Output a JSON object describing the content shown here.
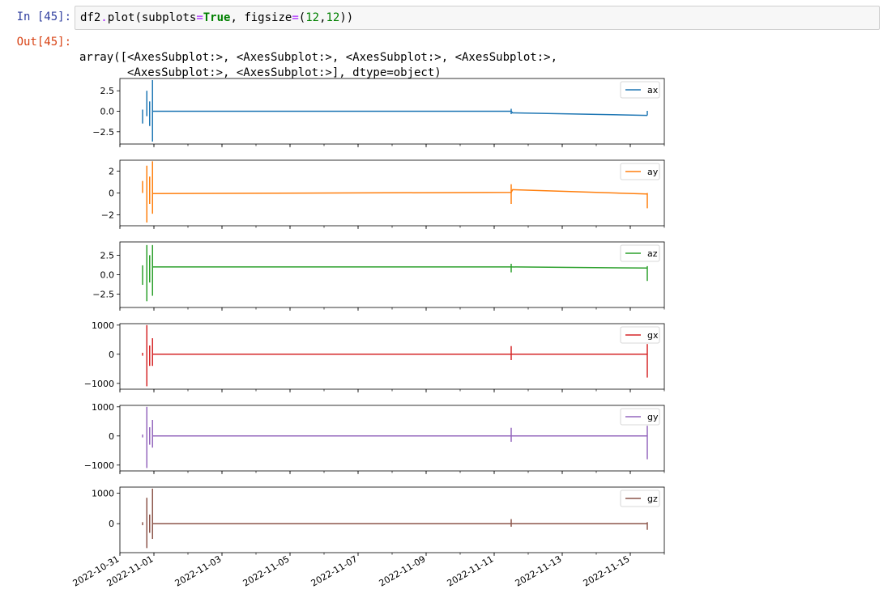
{
  "notebook": {
    "input_prompt": "In [45]:",
    "output_prompt": "Out[45]:",
    "code_tokens": [
      {
        "t": "df2",
        "c": "p"
      },
      {
        "t": ".",
        "c": "op"
      },
      {
        "t": "plot(subplots",
        "c": "p"
      },
      {
        "t": "=",
        "c": "op"
      },
      {
        "t": "True",
        "c": "kw"
      },
      {
        "t": ", figsize",
        "c": "p"
      },
      {
        "t": "=",
        "c": "op"
      },
      {
        "t": "(",
        "c": "p"
      },
      {
        "t": "12",
        "c": "num"
      },
      {
        "t": ",",
        "c": "p"
      },
      {
        "t": "12",
        "c": "num"
      },
      {
        "t": "))",
        "c": "p"
      }
    ],
    "output_lines": [
      "array([<AxesSubplot:>, <AxesSubplot:>, <AxesSubplot:>, <AxesSubplot:>,",
      "       <AxesSubplot:>, <AxesSubplot:>], dtype=object)"
    ]
  },
  "chart_data": {
    "type": "line",
    "xaxis": {
      "type": "date",
      "range": [
        "2022-10-31T00:00",
        "2022-11-16T00:00"
      ],
      "tick_labels": [
        "2022-10-31",
        "2022-11-01",
        "2022-11-03",
        "2022-11-05",
        "2022-11-07",
        "2022-11-09",
        "2022-11-11",
        "2022-11-13",
        "2022-11-15"
      ],
      "tick_dates": [
        "2022-10-31T00:00",
        "2022-11-01T00:00",
        "2022-11-03T00:00",
        "2022-11-05T00:00",
        "2022-11-07T00:00",
        "2022-11-09T00:00",
        "2022-11-11T00:00",
        "2022-11-13T00:00",
        "2022-11-15T00:00"
      ],
      "minor_ticks": "daily",
      "tick_labels_shown_on": "bottom subplot only",
      "tick_label_rotation": 30
    },
    "legend_placement": "top-right",
    "grid": false,
    "subplots": [
      {
        "series": "ax",
        "color": "#1f77b4",
        "ylim": [
          -4.0,
          4.0
        ],
        "yticks": [
          2.5,
          0.0,
          -2.5
        ],
        "ytick_labels": [
          "2.5",
          "0.0",
          "−2.5"
        ],
        "spikes": [
          {
            "x": "2022-10-31T16:00",
            "min": -1.5,
            "max": 0.2
          },
          {
            "x": "2022-10-31T19:00",
            "min": -0.6,
            "max": 2.5
          },
          {
            "x": "2022-10-31T21:00",
            "min": -1.8,
            "max": 1.2
          },
          {
            "x": "2022-10-31T23:00",
            "min": -3.7,
            "max": 3.8
          },
          {
            "x": "2022-11-11T12:00",
            "min": -0.35,
            "max": 0.3
          },
          {
            "x": "2022-11-15T12:00",
            "min": -0.5,
            "max": 0.05
          }
        ],
        "line": [
          {
            "x": "2022-10-31T23:00",
            "y": 0.0
          },
          {
            "x": "2022-11-11T12:00",
            "y": 0.0
          },
          {
            "x": "2022-11-11T13:00",
            "y": -0.2
          },
          {
            "x": "2022-11-15T12:00",
            "y": -0.5
          }
        ]
      },
      {
        "series": "ay",
        "color": "#ff7f0e",
        "ylim": [
          -3.0,
          3.0
        ],
        "yticks": [
          2,
          0,
          -2
        ],
        "ytick_labels": [
          "2",
          "0",
          "−2"
        ],
        "spikes": [
          {
            "x": "2022-10-31T16:00",
            "min": 0.0,
            "max": 1.1
          },
          {
            "x": "2022-10-31T19:00",
            "min": -2.7,
            "max": 2.5
          },
          {
            "x": "2022-10-31T21:00",
            "min": -1.0,
            "max": 1.5
          },
          {
            "x": "2022-10-31T23:00",
            "min": -1.9,
            "max": 2.9
          },
          {
            "x": "2022-11-11T12:00",
            "min": -1.0,
            "max": 0.8
          },
          {
            "x": "2022-11-15T12:00",
            "min": -1.4,
            "max": 0.0
          }
        ],
        "line": [
          {
            "x": "2022-10-31T23:00",
            "y": -0.05
          },
          {
            "x": "2022-11-11T12:00",
            "y": 0.05
          },
          {
            "x": "2022-11-11T13:00",
            "y": 0.3
          },
          {
            "x": "2022-11-15T12:00",
            "y": -0.1
          }
        ]
      },
      {
        "series": "az",
        "color": "#2ca02c",
        "ylim": [
          -4.2,
          4.2
        ],
        "yticks": [
          2.5,
          0.0,
          -2.5
        ],
        "ytick_labels": [
          "2.5",
          "0.0",
          "−2.5"
        ],
        "spikes": [
          {
            "x": "2022-10-31T16:00",
            "min": -1.3,
            "max": 1.2
          },
          {
            "x": "2022-10-31T19:00",
            "min": -3.4,
            "max": 3.8
          },
          {
            "x": "2022-10-31T21:00",
            "min": -1.0,
            "max": 2.5
          },
          {
            "x": "2022-10-31T23:00",
            "min": -2.7,
            "max": 3.8
          },
          {
            "x": "2022-11-11T12:00",
            "min": 0.3,
            "max": 1.4
          },
          {
            "x": "2022-11-15T12:00",
            "min": -0.8,
            "max": 1.1
          }
        ],
        "line": [
          {
            "x": "2022-10-31T23:00",
            "y": 1.0
          },
          {
            "x": "2022-11-11T12:00",
            "y": 1.0
          },
          {
            "x": "2022-11-15T12:00",
            "y": 0.85
          }
        ]
      },
      {
        "series": "gx",
        "color": "#d62728",
        "ylim": [
          -1200,
          1050
        ],
        "yticks": [
          1000,
          0,
          -1000
        ],
        "ytick_labels": [
          "1000",
          "0",
          "−1000"
        ],
        "spikes": [
          {
            "x": "2022-10-31T16:00",
            "min": -50,
            "max": 50
          },
          {
            "x": "2022-10-31T19:00",
            "min": -1100,
            "max": 1000
          },
          {
            "x": "2022-10-31T21:00",
            "min": -400,
            "max": 300
          },
          {
            "x": "2022-10-31T23:00",
            "min": -400,
            "max": 550
          },
          {
            "x": "2022-11-11T12:00",
            "min": -200,
            "max": 280
          },
          {
            "x": "2022-11-15T12:00",
            "min": -800,
            "max": 350
          }
        ],
        "line": [
          {
            "x": "2022-10-31T23:00",
            "y": 0
          },
          {
            "x": "2022-11-11T12:00",
            "y": 0
          },
          {
            "x": "2022-11-15T12:00",
            "y": 0
          }
        ]
      },
      {
        "series": "gy",
        "color": "#9467bd",
        "ylim": [
          -1200,
          1050
        ],
        "yticks": [
          1000,
          0,
          -1000
        ],
        "ytick_labels": [
          "1000",
          "0",
          "−1000"
        ],
        "spikes": [
          {
            "x": "2022-10-31T16:00",
            "min": -50,
            "max": 50
          },
          {
            "x": "2022-10-31T19:00",
            "min": -1100,
            "max": 1000
          },
          {
            "x": "2022-10-31T21:00",
            "min": -300,
            "max": 300
          },
          {
            "x": "2022-10-31T23:00",
            "min": -400,
            "max": 550
          },
          {
            "x": "2022-11-11T12:00",
            "min": -200,
            "max": 280
          },
          {
            "x": "2022-11-15T12:00",
            "min": -800,
            "max": 350
          }
        ],
        "line": [
          {
            "x": "2022-10-31T23:00",
            "y": 0
          },
          {
            "x": "2022-11-11T12:00",
            "y": 0
          },
          {
            "x": "2022-11-15T12:00",
            "y": 0
          }
        ]
      },
      {
        "series": "gz",
        "color": "#8c564b",
        "ylim": [
          -950,
          1200
        ],
        "yticks": [
          1000,
          0
        ],
        "ytick_labels": [
          "1000",
          "0"
        ],
        "spikes": [
          {
            "x": "2022-10-31T16:00",
            "min": -50,
            "max": 50
          },
          {
            "x": "2022-10-31T19:00",
            "min": -800,
            "max": 850
          },
          {
            "x": "2022-10-31T21:00",
            "min": -300,
            "max": 300
          },
          {
            "x": "2022-10-31T23:00",
            "min": -500,
            "max": 1150
          },
          {
            "x": "2022-11-11T12:00",
            "min": -100,
            "max": 150
          },
          {
            "x": "2022-11-15T12:00",
            "min": -200,
            "max": 50
          }
        ],
        "line": [
          {
            "x": "2022-10-31T23:00",
            "y": 0
          },
          {
            "x": "2022-11-11T12:00",
            "y": 0
          },
          {
            "x": "2022-11-15T12:00",
            "y": 0
          }
        ]
      }
    ]
  }
}
